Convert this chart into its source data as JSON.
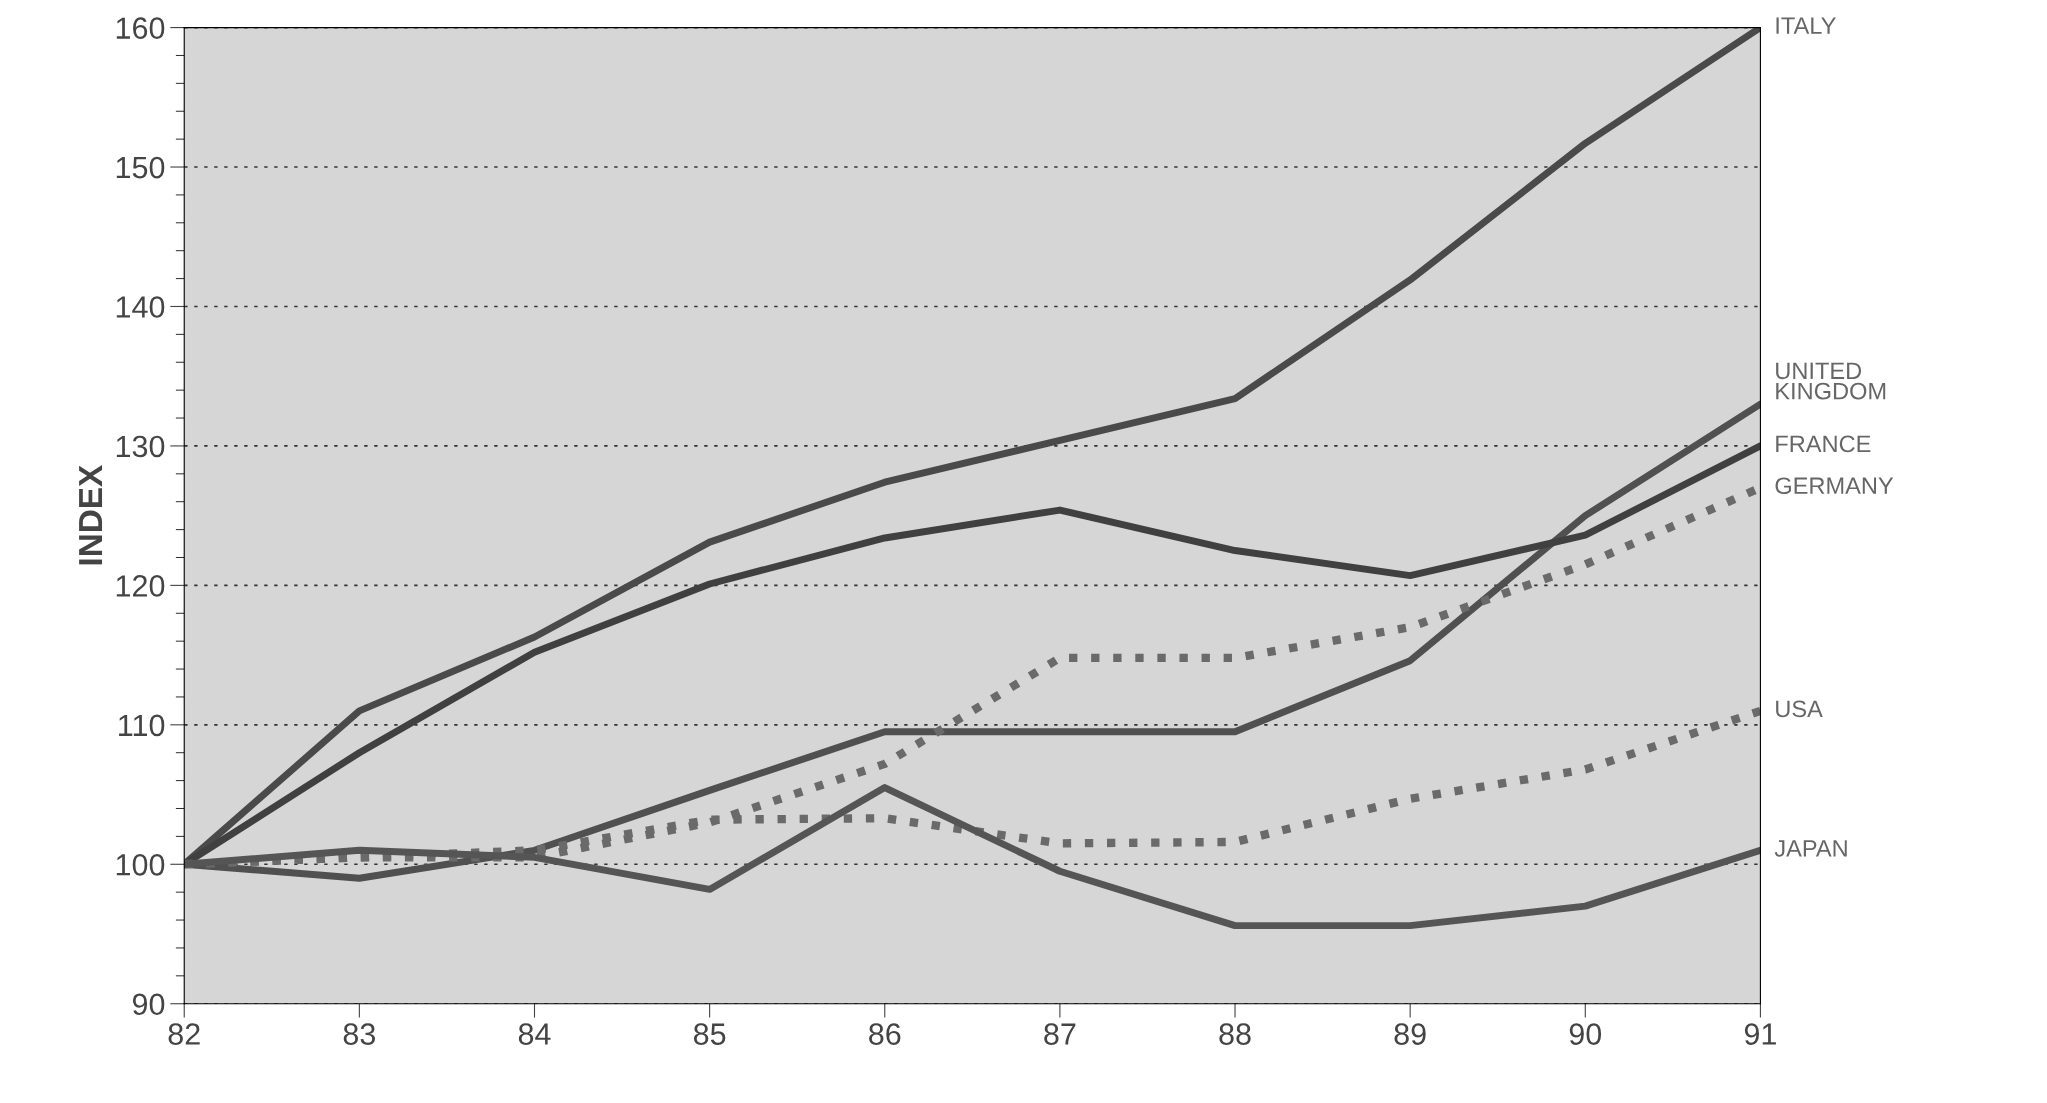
{
  "chart_data": {
    "type": "line",
    "ylabel": "INDEX",
    "x": [
      82,
      83,
      84,
      85,
      86,
      87,
      88,
      89,
      90,
      91
    ],
    "xlim": [
      82,
      91
    ],
    "xticks": [
      82,
      83,
      84,
      85,
      86,
      87,
      88,
      89,
      90,
      91
    ],
    "ylim": [
      90,
      160
    ],
    "yticks": [
      90,
      100,
      110,
      120,
      130,
      140,
      150,
      160
    ],
    "grid": "y",
    "marker": "none",
    "series": [
      {
        "name": "ITALY",
        "color": "#4a4a4a",
        "line_style": "solid",
        "values": [
          100,
          111,
          116.3,
          123.1,
          127.4,
          130.4,
          133.4,
          141.9,
          151.7,
          160
        ]
      },
      {
        "name": "UNITED KINGDOM",
        "color": "#505050",
        "line_style": "solid",
        "values": [
          100,
          99,
          101,
          105.3,
          109.5,
          109.5,
          109.5,
          114.6,
          125,
          133
        ]
      },
      {
        "name": "FRANCE",
        "color": "#404040",
        "line_style": "solid",
        "values": [
          100,
          108,
          115.2,
          120.1,
          123.4,
          125.4,
          122.5,
          120.7,
          123.6,
          130
        ]
      },
      {
        "name": "GERMANY",
        "color": "#6a6a6a",
        "line_style": "dotted",
        "values": [
          100,
          100.5,
          100.5,
          103,
          107.2,
          114.8,
          114.8,
          117,
          121.5,
          127
        ]
      },
      {
        "name": "USA",
        "color": "#6a6a6a",
        "line_style": "dotted",
        "values": [
          100,
          100.5,
          101,
          103.2,
          103.3,
          101.5,
          101.6,
          104.7,
          106.8,
          111
        ]
      },
      {
        "name": "JAPAN",
        "color": "#555555",
        "line_style": "solid",
        "values": [
          100,
          101,
          100.5,
          98.2,
          105.5,
          99.5,
          95.6,
          95.6,
          97,
          101
        ]
      }
    ]
  }
}
